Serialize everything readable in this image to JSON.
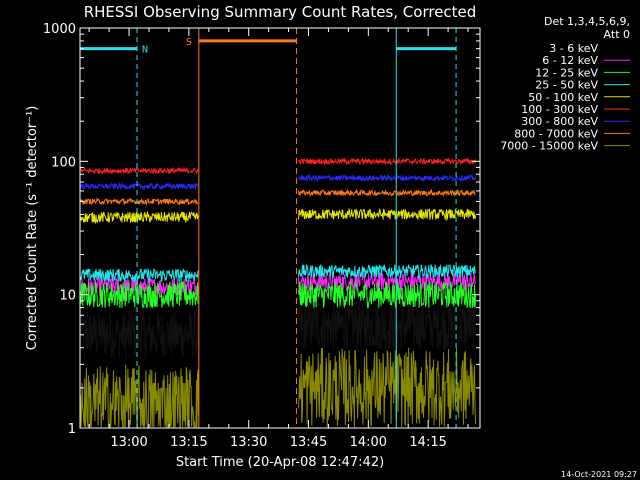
{
  "colors": {
    "background": "#000000",
    "axes": "#ffffff",
    "flag_N": "#22e6ee",
    "flag_S": "#ff7a10"
  },
  "footer": {
    "timestamp": "14-Oct-2021 09:27"
  },
  "chart_data": {
    "type": "line",
    "title": "RHESSI Observing Summary Count Rates, Corrected",
    "xlabel": "Start Time (20-Apr-08 12:47:42)",
    "ylabel": "Corrected Count Rate (s⁻¹ detector⁻¹)",
    "y_scale": "log",
    "ylim": [
      1,
      1000
    ],
    "xlim": [
      "12:47:42",
      "14:28:00"
    ],
    "x_ticks": [
      "13:00",
      "13:15",
      "13:30",
      "13:45",
      "14:00",
      "14:15"
    ],
    "y_ticks": [
      "1",
      "10",
      "100",
      "1000"
    ],
    "legend_header": [
      "Det 1,3,4,5,6,9,",
      "Att 0"
    ],
    "legend_position": "right",
    "gaps": [
      {
        "start": "13:17:30",
        "end": "13:42:00"
      },
      {
        "start": "13:42:00",
        "end": "13:42:30"
      }
    ],
    "flags": [
      {
        "label": "N",
        "type": "night",
        "color": "#22e6ee",
        "start": "12:47:42",
        "end": "13:02:00",
        "level": 700
      },
      {
        "label": "S",
        "type": "saa",
        "color": "#ff7a10",
        "start": "13:17:30",
        "end": "13:42:00",
        "level": 800
      },
      {
        "label": "",
        "type": "night",
        "color": "#22e6ee",
        "start": "14:07:00",
        "end": "14:22:00",
        "level": 700
      }
    ],
    "series": [
      {
        "name": "3 - 6 keV",
        "color": "#ffffff",
        "data_color": "#000000",
        "level_a": 5.0,
        "level_b": 5.8,
        "noise": 0.18
      },
      {
        "name": "6 - 12 keV",
        "color": "#ff22ff",
        "data_color": "#ff22ff",
        "level_a": 11.5,
        "level_b": 12.5,
        "noise": 0.07
      },
      {
        "name": "12 - 25 keV",
        "color": "#22ff22",
        "data_color": "#22ff22",
        "level_a": 10.0,
        "level_b": 10.0,
        "noise": 0.1
      },
      {
        "name": "25 - 50 keV",
        "color": "#22e6ee",
        "data_color": "#22e6ee",
        "level_a": 14.0,
        "level_b": 15.0,
        "noise": 0.05
      },
      {
        "name": "50 - 100 keV",
        "color": "#e6e600",
        "data_color": "#e6e600",
        "level_a": 38.0,
        "level_b": 40.0,
        "noise": 0.04
      },
      {
        "name": "100 - 300 keV",
        "color": "#ff2020",
        "data_color": "#ff2020",
        "level_a": 85.0,
        "level_b": 100.0,
        "noise": 0.02
      },
      {
        "name": "300 - 800 keV",
        "color": "#2a2aff",
        "data_color": "#2a2aff",
        "level_a": 65.0,
        "level_b": 75.0,
        "noise": 0.02
      },
      {
        "name": "800 - 7000 keV",
        "color": "#ff7a10",
        "data_color": "#ff7a10",
        "level_a": 50.0,
        "level_b": 58.0,
        "noise": 0.02
      },
      {
        "name": "7000 - 15000 keV",
        "color": "#8a8a00",
        "data_color": "#8a8a00",
        "level_a": 1.5,
        "level_b": 2.0,
        "noise": 0.3
      }
    ]
  }
}
